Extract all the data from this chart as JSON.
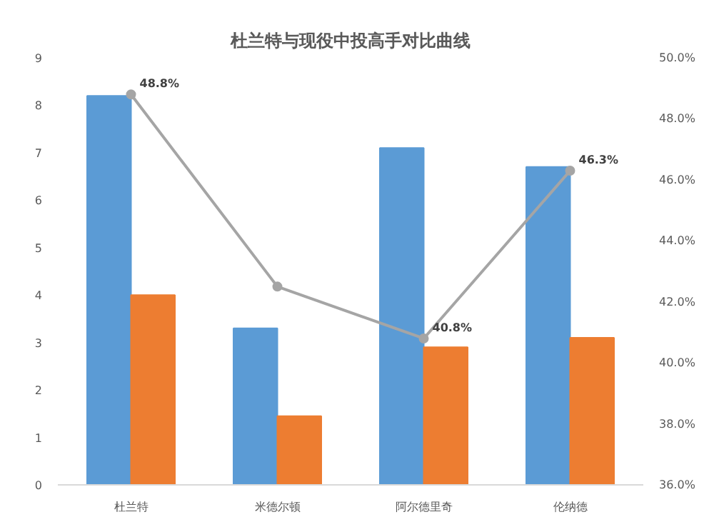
{
  "chart_data": {
    "type": "bar",
    "title": "杜兰特与现役中投高手对比曲线",
    "categories": [
      "杜兰特",
      "米德尔顿",
      "阿尔德里奇",
      "伦纳德"
    ],
    "series": [
      {
        "color": "#5b9bd5",
        "values": [
          8.2,
          3.3,
          7.1,
          6.7
        ]
      },
      {
        "color": "#ed7d31",
        "values": [
          4.0,
          1.45,
          2.9,
          3.1
        ]
      },
      {
        "type": "line",
        "axis": "y2",
        "color": "#a5a5a5",
        "marker": "circle",
        "values": [
          48.8,
          42.5,
          40.8,
          46.3
        ],
        "value_labels": [
          "48.8%",
          null,
          "40.8%",
          "46.3%"
        ]
      }
    ],
    "ylim": [
      0,
      9
    ],
    "yticks": [
      0,
      1,
      2,
      3,
      4,
      5,
      6,
      7,
      8,
      9
    ],
    "y2lim": [
      36,
      50
    ],
    "y2ticks": [
      {
        "value": 36,
        "label": "36.0%"
      },
      {
        "value": 38,
        "label": "38.0%"
      },
      {
        "value": 40,
        "label": "40.0%"
      },
      {
        "value": 42,
        "label": "42.0%"
      },
      {
        "value": 44,
        "label": "44.0%"
      },
      {
        "value": 46,
        "label": "46.0%"
      },
      {
        "value": 48,
        "label": "48.0%"
      },
      {
        "value": 50,
        "label": "50.0%"
      }
    ],
    "grid": false
  }
}
